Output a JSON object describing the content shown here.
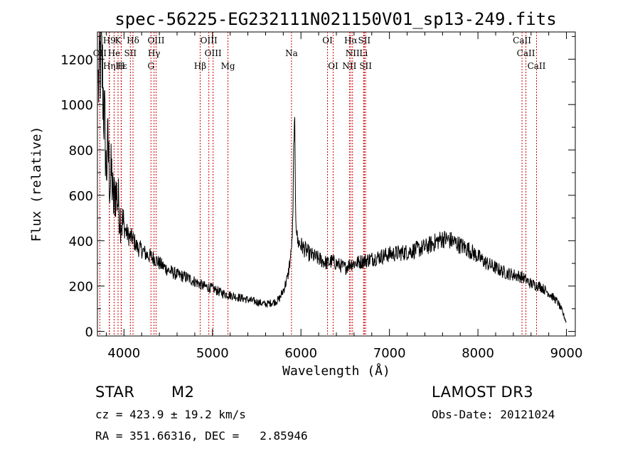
{
  "footer": {
    "object_class": "STAR",
    "subclass": "M2",
    "survey": "LAMOST DR3",
    "redshift": "cz = 423.9 ± 19.2 km/s",
    "obs_date": "Obs-Date: 20121024",
    "coords": "RA = 351.66316, DEC =   2.85946"
  },
  "colors": {
    "spectrum": "#000000",
    "line_marker": "#cc0000"
  },
  "chart_data": {
    "type": "line",
    "title": "spec-56225-EG232111N021150V01_sp13-249.fits",
    "xlabel": "Wavelength (Å)",
    "ylabel": "Flux (relative)",
    "xlim": [
      3700,
      9100
    ],
    "ylim": [
      -20,
      1320
    ],
    "xticks": [
      4000,
      5000,
      6000,
      7000,
      8000,
      9000
    ],
    "yticks": [
      0,
      200,
      400,
      600,
      800,
      1000,
      1200
    ],
    "series": [
      {
        "name": "flux",
        "x": [
          3710,
          3725,
          3740,
          3755,
          3770,
          3785,
          3800,
          3820,
          3840,
          3860,
          3880,
          3900,
          3920,
          3940,
          3960,
          3980,
          4000,
          4050,
          4100,
          4150,
          4200,
          4250,
          4300,
          4350,
          4400,
          4500,
          4600,
          4700,
          4800,
          4900,
          5000,
          5100,
          5200,
          5300,
          5400,
          5500,
          5600,
          5700,
          5750,
          5800,
          5850,
          5880,
          5900,
          5910,
          5920,
          5930,
          5940,
          5960,
          6000,
          6050,
          6100,
          6200,
          6300,
          6350,
          6400,
          6500,
          6560,
          6600,
          6700,
          6800,
          6900,
          7000,
          7100,
          7200,
          7300,
          7400,
          7500,
          7600,
          7700,
          7800,
          7900,
          8000,
          8100,
          8200,
          8300,
          8400,
          8500,
          8600,
          8700,
          8800,
          8900,
          8950,
          9000
        ],
        "values": [
          1080,
          1170,
          1220,
          1150,
          1000,
          890,
          700,
          820,
          650,
          700,
          560,
          620,
          600,
          560,
          500,
          480,
          460,
          420,
          410,
          370,
          360,
          340,
          330,
          320,
          300,
          270,
          250,
          240,
          220,
          200,
          190,
          170,
          160,
          150,
          140,
          130,
          120,
          130,
          140,
          180,
          240,
          320,
          400,
          520,
          880,
          900,
          520,
          400,
          380,
          360,
          340,
          320,
          300,
          310,
          300,
          280,
          300,
          300,
          310,
          320,
          330,
          340,
          345,
          350,
          360,
          370,
          390,
          410,
          400,
          380,
          360,
          330,
          300,
          280,
          260,
          250,
          240,
          210,
          200,
          170,
          130,
          90,
          40
        ]
      }
    ],
    "spectral_lines": [
      {
        "label": "H9",
        "wavelength": 3835,
        "row": 1
      },
      {
        "label": "K",
        "wavelength": 3933,
        "row": 1
      },
      {
        "label": "Hδ",
        "wavelength": 4102,
        "row": 1
      },
      {
        "label": "OIII",
        "wavelength": 4363,
        "row": 1
      },
      {
        "label": "OIII",
        "wavelength": 4959,
        "row": 1
      },
      {
        "label": "Na",
        "wavelength": 5893,
        "row": 2
      },
      {
        "label": "OI",
        "wavelength": 6300,
        "row": 1
      },
      {
        "label": "Hα",
        "wavelength": 6563,
        "row": 1
      },
      {
        "label": "SII",
        "wavelength": 6716,
        "row": 1
      },
      {
        "label": "CaII",
        "wavelength": 8498,
        "row": 1
      },
      {
        "label": "OII",
        "wavelength": 3727,
        "row": 2
      },
      {
        "label": "He",
        "wavelength": 3889,
        "row": 2
      },
      {
        "label": "SII",
        "wavelength": 4072,
        "row": 2
      },
      {
        "label": "Hγ",
        "wavelength": 4340,
        "row": 2
      },
      {
        "label": "OIII",
        "wavelength": 5007,
        "row": 2
      },
      {
        "label": "NII",
        "wavelength": 6583,
        "row": 2
      },
      {
        "label": "Li",
        "wavelength": 6708,
        "row": 2
      },
      {
        "label": "CaII",
        "wavelength": 8542,
        "row": 2
      },
      {
        "label": "Hε",
        "wavelength": 3970,
        "row": 3
      },
      {
        "label": "Hη",
        "wavelength": 3835,
        "row": 3
      },
      {
        "label": "H",
        "wavelength": 3968,
        "row": 3
      },
      {
        "label": "G",
        "wavelength": 4305,
        "row": 3
      },
      {
        "label": "Hβ",
        "wavelength": 4861,
        "row": 3
      },
      {
        "label": "Mg",
        "wavelength": 5175,
        "row": 3
      },
      {
        "label": "OI",
        "wavelength": 6364,
        "row": 3
      },
      {
        "label": "NII",
        "wavelength": 6548,
        "row": 3
      },
      {
        "label": "SII",
        "wavelength": 6731,
        "row": 3
      },
      {
        "label": "CaII",
        "wavelength": 8662,
        "row": 3
      }
    ]
  }
}
